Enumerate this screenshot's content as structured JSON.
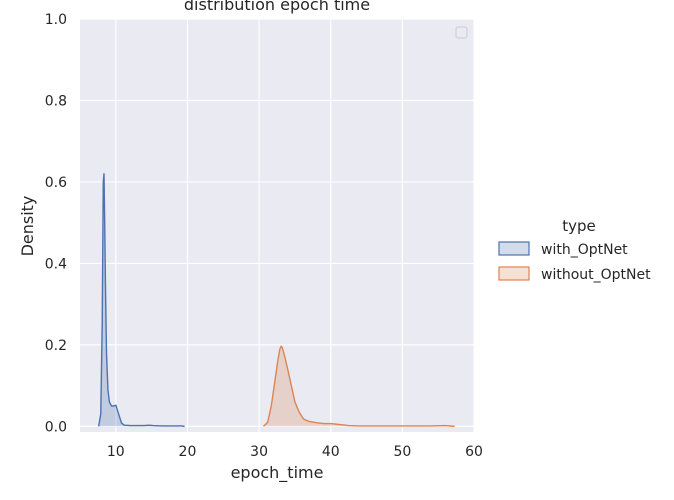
{
  "chart_data": {
    "type": "area",
    "title": "distribution epoch time",
    "xlabel": "epoch_time",
    "ylabel": "Density",
    "xlim": [
      5,
      60
    ],
    "ylim": [
      0,
      1.0
    ],
    "xticks": [
      "10",
      "20",
      "30",
      "40",
      "50",
      "60"
    ],
    "yticks": [
      "0.0",
      "0.2",
      "0.4",
      "0.6",
      "0.8",
      "1.0"
    ],
    "grid": true,
    "legend": {
      "title": "type",
      "placement": "right"
    },
    "series": [
      {
        "name": "with_OptNet",
        "color": "#4c72b0",
        "x": [
          7.6,
          7.9,
          8.1,
          8.25,
          8.35,
          8.45,
          8.55,
          8.7,
          8.9,
          9.1,
          9.4,
          9.7,
          10.0,
          10.4,
          10.8,
          11.2,
          12.0,
          13.0,
          14.0,
          14.6,
          15.2,
          16.5,
          18.0,
          19.2,
          19.6
        ],
        "y": [
          0.0,
          0.03,
          0.25,
          0.6,
          0.62,
          0.5,
          0.35,
          0.18,
          0.09,
          0.06,
          0.05,
          0.05,
          0.052,
          0.03,
          0.008,
          0.003,
          0.002,
          0.002,
          0.002,
          0.003,
          0.002,
          0.001,
          0.001,
          0.001,
          0.0
        ]
      },
      {
        "name": "without_OptNet",
        "color": "#dd8452",
        "x": [
          30.6,
          31.2,
          31.7,
          32.2,
          32.6,
          32.9,
          33.1,
          33.3,
          33.6,
          34.0,
          34.5,
          35.0,
          35.6,
          36.2,
          37.0,
          38.0,
          39.0,
          40.0,
          41.0,
          42.5,
          44.0,
          46.0,
          50.0,
          54.0,
          56.0,
          57.3
        ],
        "y": [
          0.0,
          0.01,
          0.05,
          0.11,
          0.16,
          0.19,
          0.197,
          0.19,
          0.17,
          0.14,
          0.1,
          0.06,
          0.035,
          0.018,
          0.012,
          0.009,
          0.007,
          0.007,
          0.005,
          0.002,
          0.001,
          0.001,
          0.001,
          0.001,
          0.002,
          0.0
        ]
      }
    ]
  }
}
